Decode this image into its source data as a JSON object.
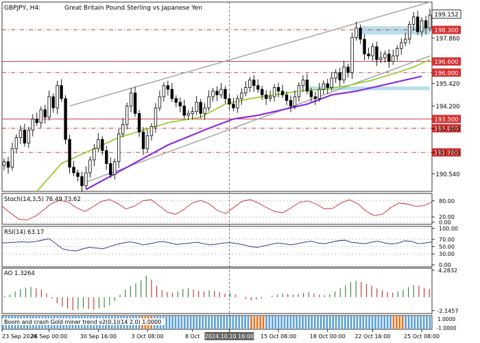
{
  "header": {
    "symbol": "GBPJPY, H4:",
    "description": "Great Britain Pound Sterling  vs Japanese Yen"
  },
  "colors": {
    "bull": "#2e8b57",
    "bear": "#d32f2f",
    "candle": "#000000",
    "ma_fast": "#9acd32",
    "ma_slow": "#8a2be2",
    "channel": "#a9a9a9",
    "level_line": "#c62828",
    "level_tag": "#d32f2f",
    "zone": "#add8e6",
    "stoch_line": "#c62828",
    "rsi_line": "#1a237e",
    "ao_up": "#2e7d32",
    "ao_down": "#c62828",
    "miner_blue": "#5aa0d8",
    "miner_orange": "#e8731e"
  },
  "chart_data": {
    "type": "candlestick",
    "price_axis": {
      "ylim": [
        189.6,
        199.8
      ],
      "tick_labels": [
        "199.152",
        "197.860",
        "195.420",
        "194.200",
        "192.980",
        "191.700",
        "190.540"
      ],
      "tick_values": [
        199.152,
        197.86,
        195.42,
        194.2,
        192.98,
        191.7,
        190.54
      ]
    },
    "current_price": {
      "label": "199.152",
      "value": 199.152
    },
    "levels": [
      {
        "label": "198.300",
        "value": 198.3,
        "style": "dashdot"
      },
      {
        "label": "196.600",
        "value": 196.6,
        "style": "solid"
      },
      {
        "label": "196.000",
        "value": 196.0,
        "style": "dashdot"
      },
      {
        "label": "193.500",
        "value": 193.5,
        "style": "solid"
      },
      {
        "label": "193.000",
        "value": 193.0,
        "style": "dashdot"
      },
      {
        "label": "191.700",
        "value": 191.7,
        "style": "dashdot"
      }
    ],
    "zones": [
      {
        "x_from": 87,
        "x_to": 104,
        "y_from": 198.05,
        "y_to": 198.5
      },
      {
        "x_from": 74,
        "x_to": 104,
        "y_from": 195.05,
        "y_to": 195.25
      }
    ],
    "channel_lines": [
      {
        "points": [
          [
            16,
            194.2
          ],
          [
            104,
            199.8
          ]
        ]
      },
      {
        "points": [
          [
            20,
            190.1
          ],
          [
            104,
            196.9
          ]
        ]
      }
    ],
    "closes": [
      191.2,
      190.9,
      191.9,
      192.5,
      192.9,
      192.2,
      192.9,
      193.5,
      193.3,
      194.0,
      193.6,
      194.7,
      194.1,
      195.3,
      194.6,
      192.4,
      190.9,
      190.6,
      190.4,
      189.9,
      190.6,
      191.3,
      191.9,
      192.4,
      191.8,
      191.1,
      190.5,
      191.2,
      192.7,
      193.2,
      194.2,
      194.9,
      193.8,
      192.8,
      191.9,
      192.6,
      193.1,
      194.1,
      194.7,
      195.3,
      195.1,
      194.6,
      194.4,
      194.2,
      193.7,
      193.8,
      193.9,
      194.4,
      193.8,
      194.1,
      194.7,
      195.0,
      194.8,
      195.1,
      194.6,
      194.3,
      194.1,
      194.6,
      194.9,
      195.2,
      195.6,
      195.3,
      195.1,
      194.8,
      194.6,
      194.7,
      195.2,
      195.0,
      194.8,
      194.5,
      194.2,
      194.7,
      195.3,
      195.6,
      195.0,
      194.7,
      194.6,
      195.1,
      195.4,
      195.2,
      195.7,
      196.0,
      195.6,
      196.3,
      196.0,
      197.9,
      198.4,
      197.8,
      197.0,
      196.9,
      197.4,
      196.7,
      196.8,
      197.0,
      196.6,
      196.9,
      197.3,
      197.6,
      197.8,
      198.6,
      199.0,
      198.2,
      198.8,
      198.4,
      199.1
    ],
    "ma_fast": [
      [
        8,
        189.6
      ],
      [
        14,
        191.1
      ],
      [
        20,
        191.7
      ],
      [
        28,
        192.5
      ],
      [
        34,
        192.9
      ],
      [
        40,
        193.3
      ],
      [
        48,
        193.6
      ],
      [
        54,
        194.3
      ],
      [
        60,
        194.6
      ],
      [
        66,
        194.8
      ],
      [
        72,
        195.0
      ],
      [
        78,
        195.1
      ],
      [
        84,
        195.3
      ],
      [
        90,
        195.6
      ],
      [
        96,
        196.0
      ],
      [
        100,
        196.3
      ],
      [
        104,
        196.7
      ]
    ],
    "ma_slow": [
      [
        20,
        189.7
      ],
      [
        30,
        190.9
      ],
      [
        40,
        192.1
      ],
      [
        50,
        193.0
      ],
      [
        56,
        193.5
      ],
      [
        62,
        193.7
      ],
      [
        68,
        194.0
      ],
      [
        74,
        194.3
      ],
      [
        80,
        194.8
      ],
      [
        86,
        195.0
      ],
      [
        92,
        195.3
      ],
      [
        98,
        195.6
      ],
      [
        102,
        195.8
      ]
    ],
    "x_axis_labels": [
      "23 Sep 2024",
      "26 Sep 00:00",
      "30 Sep 16:00",
      "3 Oct 08:00",
      "8 Oct",
      "2024.10.10 16:00",
      "15 Oct 08:00",
      "18 Oct 00:00",
      "22 Oct 16:00",
      "25 Oct 08:00"
    ],
    "x_axis_positions": [
      0,
      11,
      23,
      35,
      46,
      55,
      67,
      79,
      90,
      102
    ],
    "crosshair_x": 55,
    "panels": {
      "stoch": {
        "label": "Stoch(14,3,5) 76.49 73.62",
        "tick_labels": [
          "80.00",
          "20.00",
          "0.00"
        ],
        "tick_values": [
          80,
          20,
          0
        ],
        "ylim": [
          0,
          100
        ],
        "k_values": [
          60,
          35,
          12,
          8,
          22,
          45,
          70,
          82,
          75,
          55,
          40,
          58,
          78,
          85,
          70,
          50,
          60,
          80,
          85,
          62,
          38,
          30,
          48,
          72,
          82,
          70,
          45,
          32,
          55,
          78,
          85,
          72,
          55,
          40,
          36,
          55,
          75,
          80,
          68,
          50,
          52,
          72,
          84,
          70,
          42,
          25,
          30,
          55,
          72,
          68,
          60,
          62,
          76
        ]
      },
      "rsi": {
        "label": "RSI(14) 63.17",
        "tick_labels": [
          "100.00",
          "70.00",
          "50.00",
          "30.00",
          "0.00"
        ],
        "tick_values": [
          100,
          70,
          50,
          30,
          0
        ],
        "ylim": [
          0,
          100
        ],
        "values": [
          60,
          61,
          62,
          63,
          62,
          64,
          68,
          72,
          58,
          44,
          40,
          38,
          44,
          48,
          46,
          44,
          50,
          56,
          60,
          63,
          60,
          55,
          58,
          62,
          64,
          60,
          56,
          58,
          60,
          62,
          58,
          55,
          57,
          60,
          61,
          58,
          55,
          50,
          48,
          52,
          56,
          60,
          58,
          55,
          58,
          62,
          65,
          60,
          58,
          62,
          66,
          68,
          62,
          60,
          58,
          62,
          65,
          60,
          57,
          60,
          66,
          64,
          58,
          60,
          63
        ]
      },
      "ao": {
        "label": "AO 1.3264",
        "tick_labels": [
          "4.2832",
          "-2.1457"
        ],
        "tick_values": [
          4.2832,
          -2.1457
        ],
        "ylim": [
          -2.6,
          4.6
        ],
        "values": [
          0.2,
          0.4,
          0.9,
          1.3,
          1.5,
          1.6,
          1.4,
          1.2,
          0.6,
          -0.2,
          -1.0,
          -1.5,
          -1.8,
          -2.1,
          -2.0,
          -1.8,
          -1.9,
          -2.0,
          -1.8,
          -1.7,
          -1.3,
          -0.6,
          0.4,
          1.2,
          1.8,
          2.2,
          2.7,
          3.4,
          2.8,
          1.8,
          1.1,
          0.8,
          0.7,
          0.9,
          1.3,
          1.4,
          1.2,
          1.0,
          0.9,
          1.1,
          1.0,
          0.8,
          0.6,
          0.7,
          0.4,
          0.0,
          -0.3,
          -0.5,
          -0.4,
          -0.2,
          0.0,
          0.2,
          0.4,
          0.6,
          0.5,
          0.4,
          0.5,
          0.7,
          0.8,
          0.6,
          0.4,
          0.3,
          0.5,
          0.9,
          1.4,
          1.9,
          2.4,
          2.6,
          2.4,
          2.1,
          1.8,
          1.4,
          1.1,
          0.8,
          0.7,
          0.9,
          1.2,
          1.6,
          1.9,
          1.8,
          1.5,
          1.3
        ]
      },
      "miner": {
        "label": "Boom and crash Gold miner trend v2(0.1)(14 2.0) 1.0000",
        "tick_labels": [
          "1.0000",
          "-1.0000"
        ],
        "pattern": "BBBBBBBBBBBBBBBBBBBBBBBBBBBBBBBBBBBBBBBBBBBBBBBBBBBBBBBBBBBBBBBBBBBBBBBBBBBBBBBBBBBBBBBBBBBOOOOOOOOBBBBBBBBBBBBBBBBBBBBBBBBBBBBBBBBBBBBBBBBBBBBBBBBBBBBBBBBBBBBBBBBBOOOOOOOOOOBBBBBBBBBBBBBBBBBBBBBBBBBBBBBBBBBBBBBBBBBBBBBBBBBBBBBBBBBBBBBBBBBBBBBBBBBBBBBBBBBBBOOOOOOOOOBBBBBBBBBBBBBBBBBB"
      }
    }
  }
}
